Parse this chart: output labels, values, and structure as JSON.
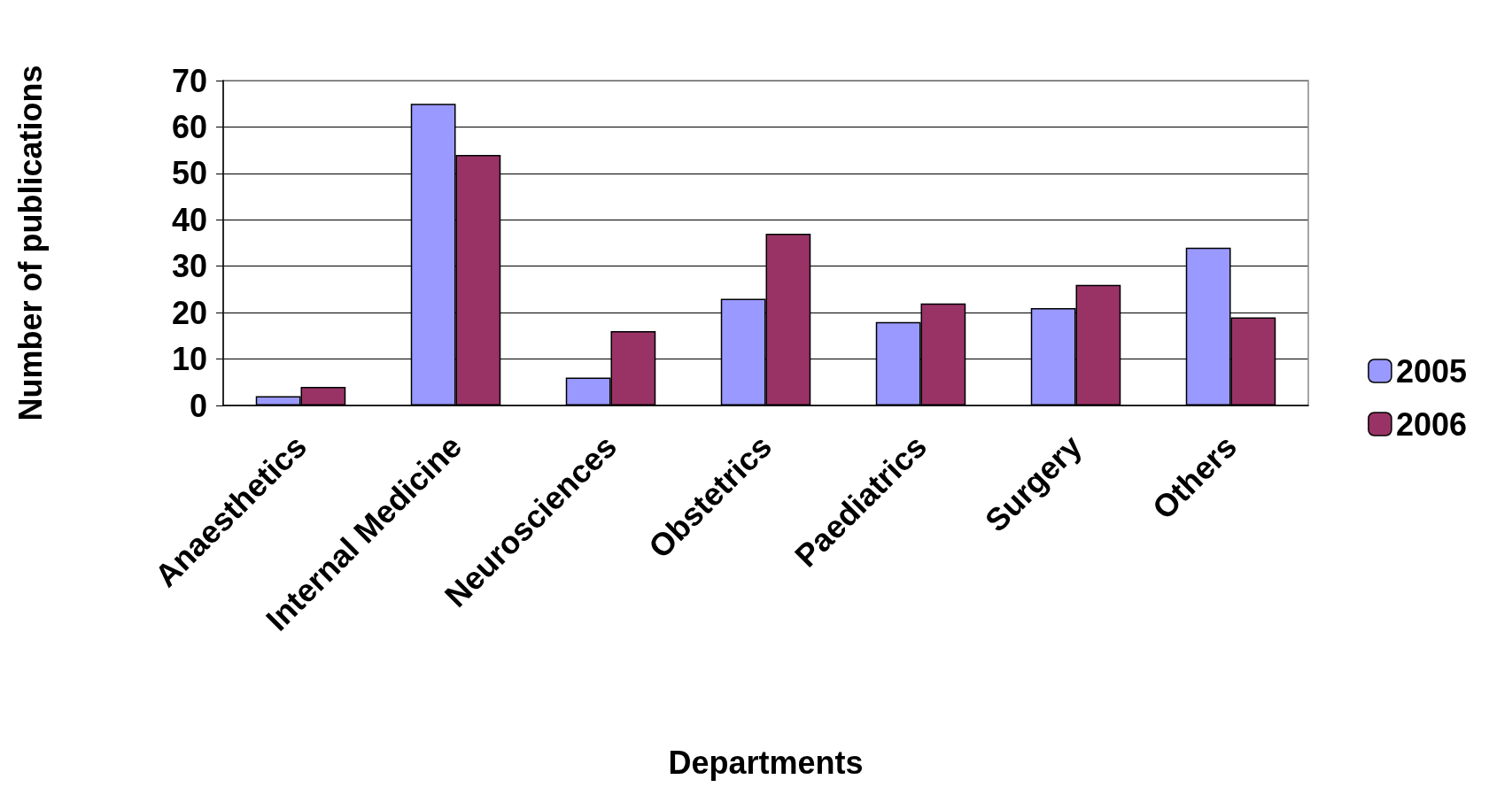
{
  "chart_data": {
    "type": "bar",
    "xlabel": "Departments",
    "ylabel": "Number of publications",
    "categories": [
      "Anaesthetics",
      "Internal Medicine",
      "Neurosciences",
      "Obstetrics",
      "Paediatrics",
      "Surgery",
      "Others"
    ],
    "series": [
      {
        "name": "2005",
        "color": "#9999ff",
        "values": [
          2,
          65,
          6,
          23,
          18,
          21,
          34
        ]
      },
      {
        "name": "2006",
        "color": "#993366",
        "values": [
          4,
          54,
          16,
          37,
          22,
          26,
          19
        ]
      }
    ],
    "ylim": [
      0,
      70
    ],
    "yticks": [
      0,
      10,
      20,
      30,
      40,
      50,
      60,
      70
    ],
    "grid": "y",
    "legend": "right"
  }
}
